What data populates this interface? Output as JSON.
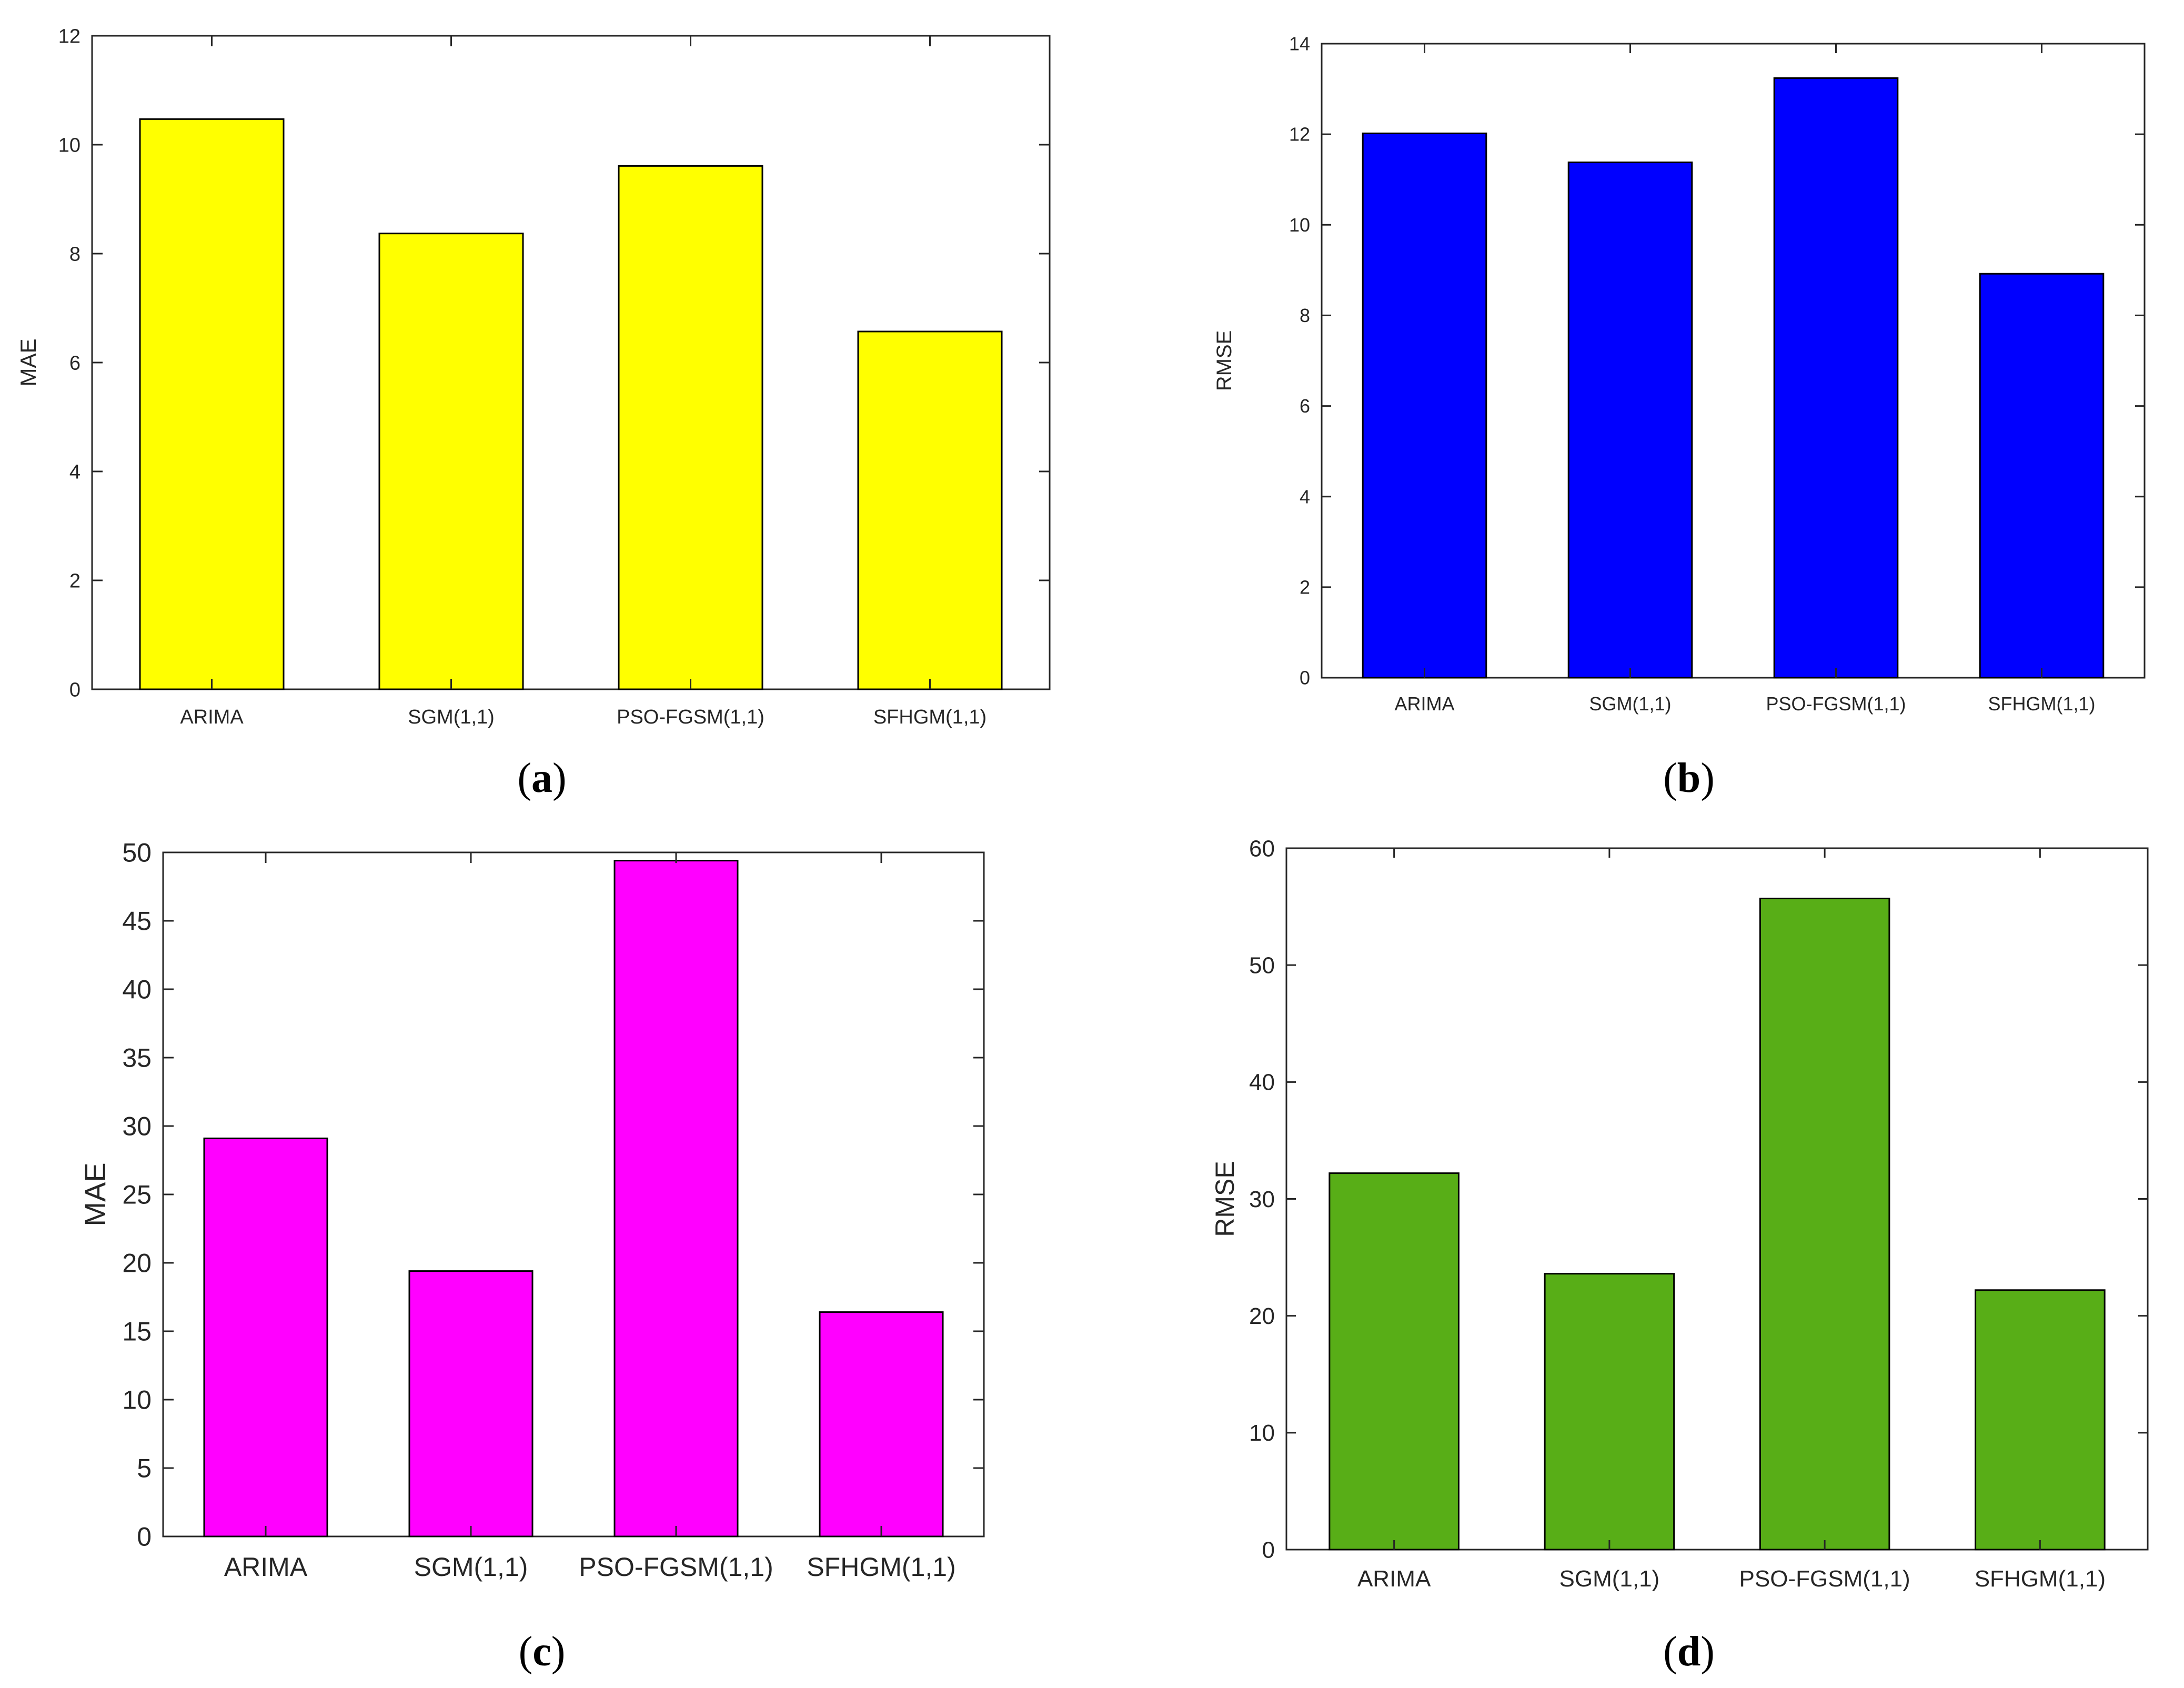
{
  "chart_data": [
    {
      "type": "bar",
      "panel": "(a)",
      "panel_letter": "a",
      "categories": [
        "ARIMA",
        "SGM(1,1)",
        "PSO-FGSM(1,1)",
        "SFHGM(1,1)"
      ],
      "values": [
        10.47,
        8.37,
        9.61,
        6.57
      ],
      "ylabel": "MAE",
      "xlabel": "",
      "ylim": [
        0,
        12
      ],
      "yticks": [
        0,
        2,
        4,
        6,
        8,
        10,
        12
      ],
      "color": "#FFFF00"
    },
    {
      "type": "bar",
      "panel": "(b)",
      "panel_letter": "b",
      "categories": [
        "ARIMA",
        "SGM(1,1)",
        "PSO-FGSM(1,1)",
        "SFHGM(1,1)"
      ],
      "values": [
        12.02,
        11.38,
        13.24,
        8.92
      ],
      "ylabel": "RMSE",
      "xlabel": "",
      "ylim": [
        0,
        14
      ],
      "yticks": [
        0,
        2,
        4,
        6,
        8,
        10,
        12,
        14
      ],
      "color": "#0000FF"
    },
    {
      "type": "bar",
      "panel": "(c)",
      "panel_letter": "c",
      "categories": [
        "ARIMA",
        "SGM(1,1)",
        "PSO-FGSM(1,1)",
        "SFHGM(1,1)"
      ],
      "values": [
        29.1,
        19.4,
        49.4,
        16.4
      ],
      "ylabel": "MAE",
      "xlabel": "",
      "ylim": [
        0,
        50
      ],
      "yticks": [
        0,
        5,
        10,
        15,
        20,
        25,
        30,
        35,
        40,
        45,
        50
      ],
      "color": "#FF00FF"
    },
    {
      "type": "bar",
      "panel": "(d)",
      "panel_letter": "d",
      "categories": [
        "ARIMA",
        "SGM(1,1)",
        "PSO-FGSM(1,1)",
        "SFHGM(1,1)"
      ],
      "values": [
        32.2,
        23.6,
        55.7,
        22.2
      ],
      "ylabel": "RMSE",
      "xlabel": "",
      "ylim": [
        0,
        60
      ],
      "yticks": [
        0,
        10,
        20,
        30,
        40,
        50,
        60
      ],
      "color": "#58AE17"
    }
  ]
}
